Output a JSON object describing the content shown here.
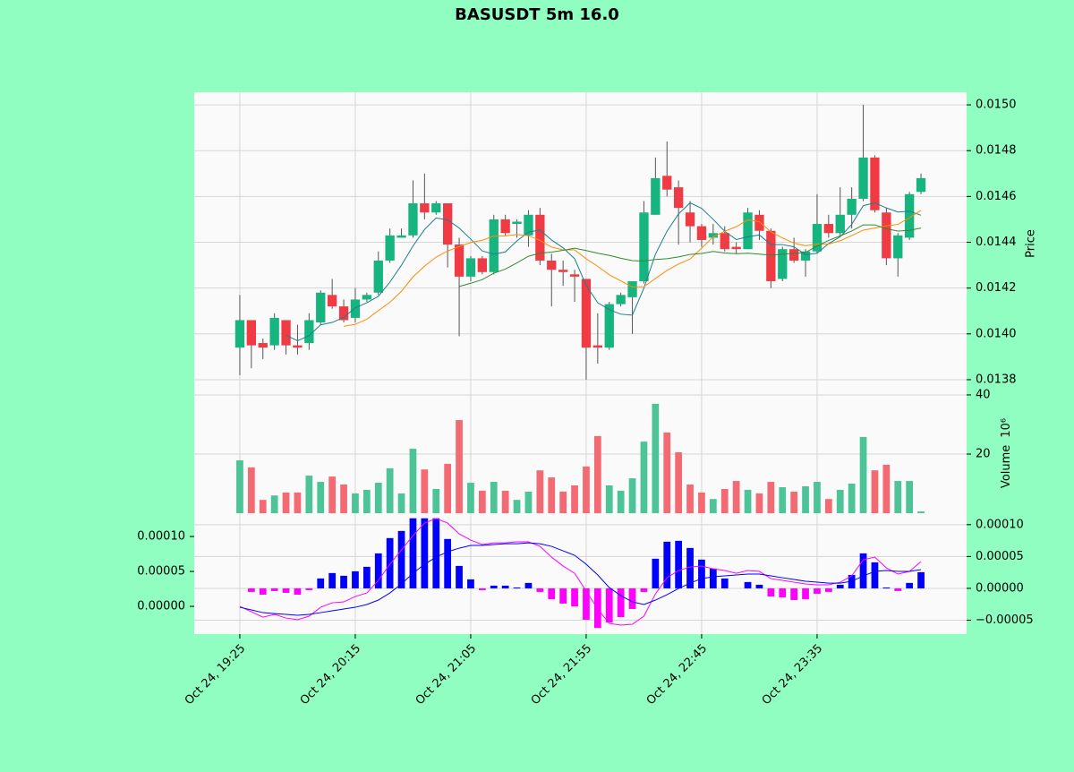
{
  "chart_data": [
    {
      "type": "candlestick",
      "title": "BASUSDT 5m 16.0",
      "ylabel": "Price",
      "up_color": "#16b47e",
      "down_color": "#f03a44",
      "open": [
        0.01394,
        0.01406,
        0.01396,
        0.01395,
        0.01406,
        0.01395,
        0.01396,
        0.01405,
        0.01417,
        0.01412,
        0.01407,
        0.01415,
        0.01418,
        0.01432,
        0.01442,
        0.01443,
        0.01457,
        0.01453,
        0.01457,
        0.01439,
        0.01425,
        0.01433,
        0.01427,
        0.0145,
        0.01448,
        0.01443,
        0.01452,
        0.01432,
        0.01428,
        0.01426,
        0.01424,
        0.01395,
        0.01394,
        0.01413,
        0.01416,
        0.01423,
        0.01452,
        0.01469,
        0.01464,
        0.01453,
        0.01447,
        0.01442,
        0.01444,
        0.01438,
        0.01437,
        0.01452,
        0.01445,
        0.01424,
        0.01437,
        0.01432,
        0.01436,
        0.01448,
        0.01444,
        0.01452,
        0.01459,
        0.01477,
        0.01453,
        0.01433,
        0.01442,
        0.01462
      ],
      "high": [
        0.01417,
        0.01406,
        0.01398,
        0.01409,
        0.01406,
        0.01404,
        0.01409,
        0.01419,
        0.01424,
        0.01415,
        0.0142,
        0.01418,
        0.01436,
        0.01446,
        0.01446,
        0.01467,
        0.0147,
        0.01458,
        0.01457,
        0.01442,
        0.01434,
        0.01434,
        0.01452,
        0.01452,
        0.0145,
        0.01454,
        0.01455,
        0.01435,
        0.01432,
        0.01428,
        0.01424,
        0.01409,
        0.01414,
        0.01418,
        0.01423,
        0.01458,
        0.01477,
        0.01484,
        0.01467,
        0.01458,
        0.01448,
        0.01448,
        0.01447,
        0.0144,
        0.01455,
        0.01454,
        0.01446,
        0.01438,
        0.01442,
        0.01437,
        0.01461,
        0.01452,
        0.01464,
        0.01464,
        0.015,
        0.01478,
        0.01455,
        0.01444,
        0.01462,
        0.0147
      ],
      "low": [
        0.01382,
        0.01385,
        0.01389,
        0.01393,
        0.01391,
        0.01391,
        0.01393,
        0.01404,
        0.01411,
        0.01405,
        0.01405,
        0.01414,
        0.01417,
        0.01431,
        0.01442,
        0.01442,
        0.0145,
        0.01452,
        0.01429,
        0.01399,
        0.01423,
        0.01426,
        0.01426,
        0.01443,
        0.01442,
        0.01438,
        0.0143,
        0.01412,
        0.01421,
        0.01414,
        0.0138,
        0.01387,
        0.01393,
        0.01412,
        0.014,
        0.01422,
        0.01452,
        0.0146,
        0.01439,
        0.0144,
        0.01438,
        0.01439,
        0.01436,
        0.01435,
        0.01437,
        0.01441,
        0.0142,
        0.01423,
        0.01431,
        0.01425,
        0.01435,
        0.01442,
        0.01443,
        0.01446,
        0.01458,
        0.01453,
        0.0143,
        0.01425,
        0.01441,
        0.01461
      ],
      "close": [
        0.01406,
        0.01395,
        0.01394,
        0.01407,
        0.01395,
        0.01394,
        0.01406,
        0.01418,
        0.01412,
        0.01406,
        0.01415,
        0.01417,
        0.01432,
        0.01443,
        0.01443,
        0.01457,
        0.01453,
        0.01457,
        0.01439,
        0.01425,
        0.01433,
        0.01427,
        0.0145,
        0.01444,
        0.01449,
        0.01452,
        0.01432,
        0.01428,
        0.01427,
        0.01425,
        0.01394,
        0.01394,
        0.01413,
        0.01417,
        0.01423,
        0.01453,
        0.01468,
        0.01463,
        0.01455,
        0.01447,
        0.01441,
        0.01444,
        0.01437,
        0.01437,
        0.01453,
        0.01445,
        0.01423,
        0.01437,
        0.01432,
        0.01436,
        0.01448,
        0.01444,
        0.01452,
        0.01459,
        0.01477,
        0.01454,
        0.01433,
        0.01443,
        0.01461,
        0.01468
      ],
      "series": [
        {
          "color": "#1a7f8e",
          "values": [
            null,
            null,
            null,
            null,
            0.013994,
            0.01397,
            0.013992,
            0.01404,
            0.01405,
            0.014072,
            0.014114,
            0.014136,
            0.014164,
            0.014226,
            0.0143,
            0.014384,
            0.014456,
            0.014506,
            0.014498,
            0.014462,
            0.014414,
            0.014362,
            0.014348,
            0.014358,
            0.014406,
            0.014444,
            0.014454,
            0.01441,
            0.014376,
            0.014328,
            0.014212,
            0.014136,
            0.014106,
            0.014086,
            0.014082,
            0.0142,
            0.014348,
            0.014448,
            0.014524,
            0.014572,
            0.014548,
            0.0145,
            0.014448,
            0.014412,
            0.014424,
            0.014432,
            0.01439,
            0.01439,
            0.01438,
            0.014346,
            0.014352,
            0.014394,
            0.014424,
            0.014478,
            0.01456,
            0.014572,
            0.01455,
            0.014532,
            0.014536,
            0.014518
          ]
        },
        {
          "color": "#ff8c00",
          "values": [
            null,
            null,
            null,
            null,
            null,
            null,
            null,
            null,
            null,
            0.014033,
            0.014042,
            0.014064,
            0.014102,
            0.014138,
            0.014186,
            0.014249,
            0.014296,
            0.014335,
            0.014362,
            0.014381,
            0.014399,
            0.014409,
            0.014427,
            0.014428,
            0.014434,
            0.014429,
            0.014408,
            0.014379,
            0.014367,
            0.014367,
            0.014328,
            0.014295,
            0.014258,
            0.014231,
            0.014205,
            0.014206,
            0.014242,
            0.014277,
            0.014305,
            0.014327,
            0.014374,
            0.014424,
            0.014448,
            0.014468,
            0.014498,
            0.01449,
            0.014445,
            0.014419,
            0.014396,
            0.014385,
            0.014392,
            0.014392,
            0.014407,
            0.014429,
            0.014453,
            0.014462,
            0.014472,
            0.014478,
            0.014507,
            0.014539
          ]
        },
        {
          "color": "#2e8b2e",
          "values": [
            null,
            null,
            null,
            null,
            null,
            null,
            null,
            null,
            null,
            null,
            null,
            null,
            null,
            null,
            null,
            null,
            null,
            null,
            null,
            0.014207,
            0.014221,
            0.014237,
            0.014265,
            0.014283,
            0.01431,
            0.014339,
            0.014352,
            0.014357,
            0.014365,
            0.014374,
            0.014364,
            0.014352,
            0.014343,
            0.01433,
            0.01432,
            0.014318,
            0.014325,
            0.014328,
            0.014336,
            0.014347,
            0.014351,
            0.01436,
            0.014353,
            0.01435,
            0.014352,
            0.014348,
            0.014344,
            0.014348,
            0.014351,
            0.014356,
            0.014383,
            0.014408,
            0.014428,
            0.014449,
            0.014476,
            0.014476,
            0.014459,
            0.014449,
            0.014452,
            0.014462
          ]
        }
      ],
      "ylim": [
        0.013749,
        0.015055
      ],
      "yticks": [
        0.0138,
        {
          "value": 0.014,
          "label": "0.0140"
        },
        0.0142,
        0.0144,
        0.0146,
        0.0148,
        {
          "value": 0.015,
          "label": "0.0150"
        }
      ],
      "grid": true
    },
    {
      "type": "bar",
      "ylabel": "Volume",
      "ylabel_multiplier": "10⁶",
      "up_color": "#4cc497",
      "down_color": "#f36a72",
      "values": [
        17.9,
        15.5,
        4.5,
        6,
        7,
        7,
        12.7,
        10.6,
        12.4,
        9.7,
        6.7,
        7.9,
        10.3,
        15.2,
        6.7,
        21.8,
        14.8,
        8.2,
        16.7,
        31.5,
        10.3,
        7.6,
        10.6,
        7.6,
        4.5,
        7.3,
        14.5,
        12.1,
        7.3,
        9.4,
        15.8,
        26.1,
        9.4,
        7.6,
        11.8,
        24.2,
        37,
        27.3,
        20.6,
        9.7,
        7,
        4.8,
        8.2,
        10.9,
        7.9,
        6.7,
        10.6,
        8.8,
        7.3,
        9.1,
        10.6,
        4.8,
        7.9,
        10,
        25.8,
        14.5,
        16.4,
        10.9,
        10.9,
        0.6
      ],
      "ylim": [
        -1.5,
        41.2
      ],
      "yticks": [
        20,
        40
      ],
      "grid": true
    },
    {
      "type": "macd",
      "histogram": {
        "axis": "y2",
        "up_color": "#0000ff",
        "down_color": "#ff00ff",
        "values": [
          0,
          -5.6e-06,
          -9.9e-06,
          -4.2e-06,
          -7e-06,
          -9.9e-06,
          -2.8e-06,
          1.55e-05,
          2.4e-05,
          1.97e-05,
          2.68e-05,
          3.38e-05,
          5.49e-05,
          7.89e-05,
          9.01e-05,
          0.00011,
          0.00011,
          0.00011,
          7.75e-05,
          3.52e-05,
          1.41e-05,
          -2.8e-06,
          4.2e-06,
          4.2e-06,
          1.4e-06,
          8.5e-06,
          -5.6e-06,
          -1.69e-05,
          -2.39e-05,
          -2.82e-05,
          -4.93e-05,
          -6.2e-05,
          -5.35e-05,
          -4.51e-05,
          -3.24e-05,
          -5.6e-06,
          4.65e-05,
          7.32e-05,
          7.46e-05,
          6.34e-05,
          4.51e-05,
          3.1e-05,
          1.55e-05,
          0,
          9.9e-06,
          5.6e-06,
          -1.27e-05,
          -1.41e-05,
          -1.83e-05,
          -1.69e-05,
          -8.5e-06,
          -5.6e-06,
          5.6e-06,
          2.11e-05,
          5.49e-05,
          4.08e-05,
          1.4e-06,
          -4.2e-06,
          8.5e-06,
          2.54e-05
        ]
      },
      "series": [
        {
          "color": "#ff00ff",
          "values": [
            0,
            -7.7e-06,
            -1.54e-05,
            -1.15e-05,
            -1.67e-05,
            -1.92e-05,
            -1.41e-05,
            -1.3e-06,
            5.1e-06,
            6.4e-06,
            1.41e-05,
            1.92e-05,
            3.72e-05,
            6.03e-05,
            8.08e-05,
            0.0001013,
            0.0001192,
            0.0001256,
            0.0001192,
            0.0001038,
            9.49e-05,
            8.85e-05,
            9.1e-05,
            9.1e-05,
            9.23e-05,
            9.23e-05,
            8.59e-05,
            7.05e-05,
            5.77e-05,
            4.74e-05,
            2.18e-05,
            -3.8e-06,
            -2.44e-05,
            -2.69e-05,
            -2.56e-05,
            -1.41e-05,
            1.79e-05,
            4.1e-05,
            5.13e-05,
            5.64e-05,
            5.77e-05,
            5.38e-05,
            5.13e-05,
            4.74e-05,
            5.13e-05,
            5e-05,
            3.97e-05,
            3.72e-05,
            3.46e-05,
            3.21e-05,
            3.08e-05,
            3.08e-05,
            3.46e-05,
            4.36e-05,
            6.67e-05,
            7.05e-05,
            5.51e-05,
            4.62e-05,
            5e-05,
            6.41e-05
          ]
        },
        {
          "color": "#0000ff",
          "values": [
            -1.3e-06,
            -5.1e-06,
            -9e-06,
            -1.03e-05,
            -1.15e-05,
            -1.28e-05,
            -1.15e-05,
            -9e-06,
            -6.4e-06,
            -3.8e-06,
            -1.3e-06,
            2.6e-06,
            9e-06,
            1.92e-05,
            3.21e-05,
            4.74e-05,
            6.03e-05,
            7.05e-05,
            7.82e-05,
            8.33e-05,
            8.72e-05,
            8.72e-05,
            8.85e-05,
            8.97e-05,
            8.97e-05,
            9.1e-05,
            8.97e-05,
            8.59e-05,
            7.95e-05,
            7.31e-05,
            6.03e-05,
            4.49e-05,
            2.69e-05,
            1.54e-05,
            6.4e-06,
            2.6e-06,
            9e-06,
            1.67e-05,
            2.56e-05,
            3.33e-05,
            3.97e-05,
            4.23e-05,
            4.36e-05,
            4.49e-05,
            4.62e-05,
            4.62e-05,
            4.36e-05,
            4.1e-05,
            3.85e-05,
            3.59e-05,
            3.46e-05,
            3.33e-05,
            3.33e-05,
            3.59e-05,
            4.36e-05,
            5e-05,
            5.13e-05,
            5e-05,
            5e-05,
            5.26e-05
          ]
        }
      ],
      "ylim": [
        -3.97e-05,
        0.000127
      ],
      "yticks": [
        {
          "value": 0,
          "label": "0.00000"
        },
        {
          "value": 5e-05,
          "label": "0.00005"
        },
        {
          "value": 0.0001,
          "label": "0.00010"
        }
      ],
      "y2lim": [
        -7.18e-05,
        0.000111
      ],
      "y2ticks": [
        {
          "value": -5e-05,
          "label": "−0.00005"
        },
        {
          "value": 0,
          "label": "0.00000"
        },
        {
          "value": 5e-05,
          "label": "0.00005"
        },
        {
          "value": 0.0001,
          "label": "0.00010"
        }
      ],
      "xlim": [
        -3.95,
        62.95
      ],
      "xticks": [
        {
          "value": 0,
          "label": "Oct 24, 19:25"
        },
        {
          "value": 10,
          "label": "Oct 24, 20:15"
        },
        {
          "value": 20,
          "label": "Oct 24, 21:05"
        },
        {
          "value": 30,
          "label": "Oct 24, 21:55"
        },
        {
          "value": 40,
          "label": "Oct 24, 22:45"
        },
        {
          "value": 50,
          "label": "Oct 24, 23:35"
        }
      ],
      "grid": true
    }
  ]
}
